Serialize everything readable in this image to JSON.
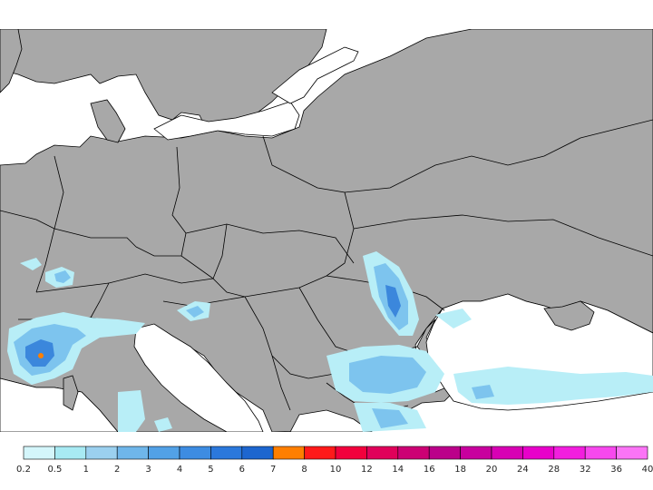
{
  "map": {
    "colors": {
      "land": "#a8a8a8",
      "sea": "#ffffff",
      "border": "#000000",
      "precip_light": "#b8eef7",
      "precip_mid": "#7dc4ee",
      "precip_strong": "#3b87dc",
      "precip_peak": "#ff7f00"
    }
  },
  "legend": {
    "colors": [
      "#d4f6fb",
      "#a8eaf3",
      "#9bd0ef",
      "#6fb6ea",
      "#52a1e6",
      "#3d8ce2",
      "#2b78dc",
      "#1d66cf",
      "#ff7f00",
      "#ff1a1a",
      "#f2003c",
      "#e0005a",
      "#cc0074",
      "#bb008a",
      "#c8009e",
      "#d800b4",
      "#e800ca",
      "#f21ede",
      "#f748ee",
      "#fb74f6"
    ],
    "labels": [
      "0.2",
      "0.5",
      "1",
      "2",
      "3",
      "4",
      "5",
      "6",
      "7",
      "8",
      "10",
      "12",
      "14",
      "16",
      "18",
      "20",
      "24",
      "28",
      "32",
      "36",
      "40"
    ]
  }
}
